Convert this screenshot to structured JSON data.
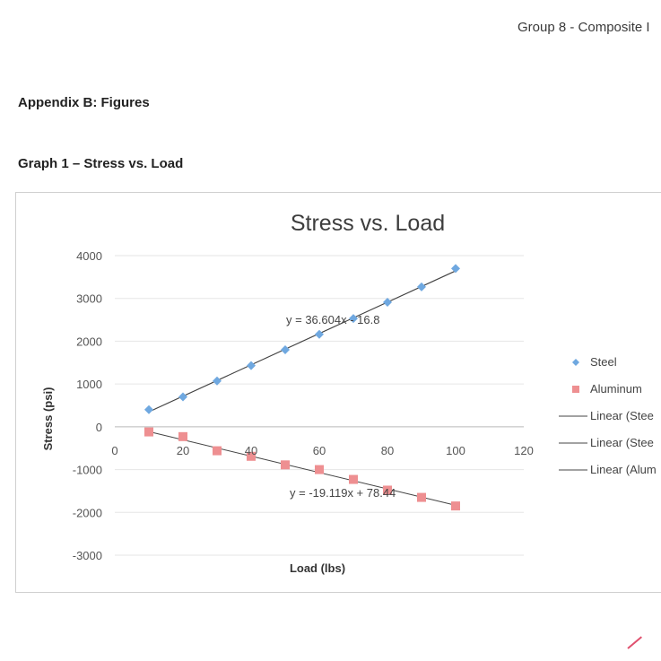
{
  "page": {
    "header_text": "Group 8 - Composite I",
    "appendix_title": "Appendix B: Figures",
    "graph_caption": "Graph 1 – Stress vs. Load"
  },
  "colors": {
    "steel": "#6fa8e0",
    "aluminum": "#ee8f91",
    "trendline": "#444444",
    "gridline": "#e6e6e6"
  },
  "chart_data": {
    "type": "scatter",
    "title": "Stress vs. Load",
    "xlabel": "Load (lbs)",
    "ylabel": "Stress (psi)",
    "xlim": [
      0,
      120
    ],
    "ylim": [
      -3000,
      4000
    ],
    "x_ticks": [
      0,
      20,
      40,
      60,
      80,
      100,
      120
    ],
    "y_ticks": [
      4000,
      3000,
      2000,
      1000,
      0,
      -1000,
      -2000,
      -3000
    ],
    "grid": true,
    "legend_position": "right",
    "series": [
      {
        "name": "Steel",
        "marker": "diamond",
        "color": "#6fa8e0",
        "x": [
          10,
          20,
          30,
          40,
          50,
          60,
          70,
          80,
          90,
          100
        ],
        "y": [
          400,
          700,
          1070,
          1430,
          1800,
          2160,
          2530,
          2910,
          3270,
          3700
        ]
      },
      {
        "name": "Aluminum",
        "marker": "square",
        "color": "#ee8f91",
        "x": [
          10,
          20,
          30,
          40,
          50,
          60,
          70,
          80,
          90,
          100
        ],
        "y": [
          -120,
          -230,
          -560,
          -690,
          -890,
          -1000,
          -1230,
          -1480,
          -1650,
          -1850
        ]
      }
    ],
    "trendlines": [
      {
        "legend": "Linear (Stee",
        "slope": 36.604,
        "intercept": -16.8,
        "x_range": [
          10,
          100
        ],
        "equation": "y = 36.604x - 16.8"
      },
      {
        "legend": "Linear (Stee",
        "slope": 36.604,
        "intercept": -16.8,
        "x_range": [
          10,
          100
        ],
        "equation": ""
      },
      {
        "legend": "Linear (Alum",
        "slope": -19.119,
        "intercept": 78.44,
        "x_range": [
          10,
          100
        ],
        "equation": "y = -19.119x + 78.44"
      }
    ]
  }
}
